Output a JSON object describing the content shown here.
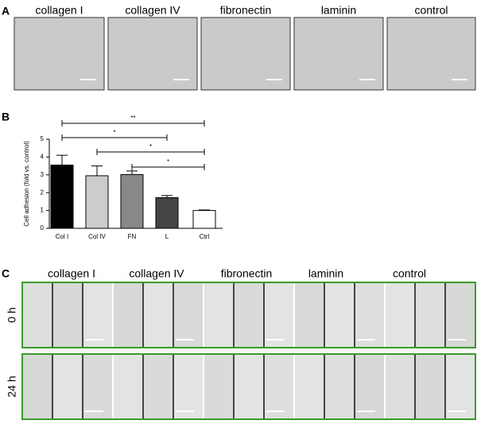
{
  "panel_a": {
    "label": "A",
    "images": [
      "collagen I",
      "collagen IV",
      "fibronectin",
      "laminin",
      "control"
    ]
  },
  "chart_data": {
    "type": "bar",
    "panel_label": "B",
    "ylabel": "Cell adhesion (fold vs. control)",
    "categories": [
      "Col I",
      "Col IV",
      "FN",
      "L",
      "Ctrl"
    ],
    "values": [
      3.55,
      2.95,
      3.02,
      1.72,
      1.0
    ],
    "errors": [
      0.55,
      0.55,
      0.2,
      0.12,
      0.03
    ],
    "colors": [
      "#000000",
      "#cccccc",
      "#888888",
      "#444444",
      "#ffffff"
    ],
    "ylim": [
      0,
      5
    ],
    "yticks": [
      0,
      1,
      2,
      3,
      4,
      5
    ],
    "annotations": [
      {
        "label": "**",
        "from": "Col I",
        "to": "Ctrl"
      },
      {
        "label": "*",
        "from": "Col I",
        "to": "L"
      },
      {
        "label": "*",
        "from": "Col IV",
        "to": "Ctrl"
      },
      {
        "label": "*",
        "from": "FN",
        "to": "Ctrl"
      }
    ]
  },
  "panel_c": {
    "label": "C",
    "columns": [
      "collagen I",
      "collagen IV",
      "fibronectin",
      "laminin",
      "control"
    ],
    "rows": [
      "0 h",
      "24 h"
    ]
  }
}
